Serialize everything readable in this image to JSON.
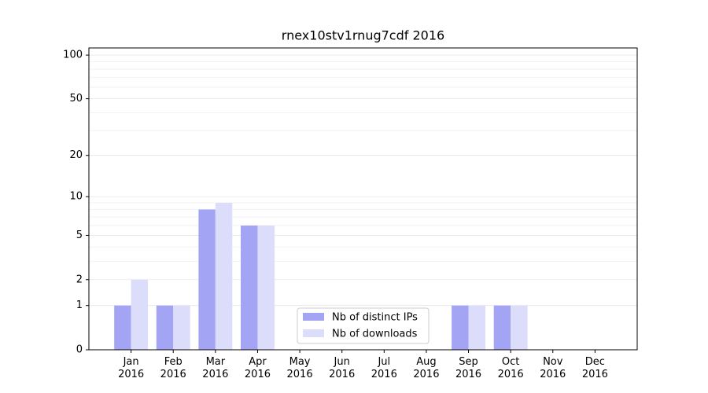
{
  "chart_data": {
    "type": "bar",
    "title": "rnex10stv1rnug7cdf 2016",
    "categories": [
      "Jan\n2016",
      "Feb\n2016",
      "Mar\n2016",
      "Apr\n2016",
      "May\n2016",
      "Jun\n2016",
      "Jul\n2016",
      "Aug\n2016",
      "Sep\n2016",
      "Oct\n2016",
      "Nov\n2016",
      "Dec\n2016"
    ],
    "series": [
      {
        "name": "Nb of distinct IPs",
        "color": "#a4a4f5",
        "values": [
          1,
          1,
          8,
          6,
          0,
          0,
          0,
          0,
          1,
          1,
          0,
          0
        ]
      },
      {
        "name": "Nb of downloads",
        "color": "#dcdcfb",
        "values": [
          2,
          1,
          9,
          6,
          0,
          0,
          0,
          0,
          1,
          1,
          0,
          0
        ]
      }
    ],
    "yscale": "log1p",
    "ylim": [
      0,
      112
    ],
    "yticks": [
      0,
      1,
      2,
      5,
      10,
      20,
      50,
      100
    ],
    "minor_yticks": [
      3,
      4,
      6,
      7,
      8,
      9,
      30,
      40,
      60,
      70,
      80,
      90
    ],
    "grid": true,
    "legend": "lower center"
  }
}
